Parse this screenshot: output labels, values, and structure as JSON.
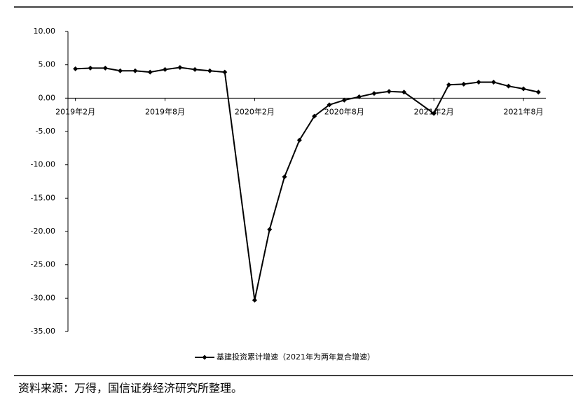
{
  "chart_data": {
    "type": "line",
    "x": [
      "2019-02",
      "2019-03",
      "2019-04",
      "2019-05",
      "2019-06",
      "2019-07",
      "2019-08",
      "2019-09",
      "2019-10",
      "2019-11",
      "2019-12",
      "2020-02",
      "2020-03",
      "2020-04",
      "2020-05",
      "2020-06",
      "2020-07",
      "2020-08",
      "2020-09",
      "2020-10",
      "2020-11",
      "2020-12",
      "2021-02",
      "2021-03",
      "2021-04",
      "2021-05",
      "2021-06",
      "2021-07",
      "2021-08",
      "2021-09"
    ],
    "series": [
      {
        "name": "基建投资累计增速（2021年为两年复合增速）",
        "color": "#000000",
        "values": [
          4.4,
          4.5,
          4.5,
          4.1,
          4.1,
          3.9,
          4.3,
          4.6,
          4.3,
          4.1,
          3.9,
          -30.3,
          -19.7,
          -11.8,
          -6.3,
          -2.7,
          -1.0,
          -0.3,
          0.2,
          0.7,
          1.0,
          0.9,
          -2.3,
          2.0,
          2.1,
          2.4,
          2.4,
          1.8,
          1.4,
          0.9
        ]
      }
    ],
    "xlim": [
      "2019-02",
      "2021-09"
    ],
    "xticks": [
      {
        "value": "2019-02",
        "label": "2019年2月"
      },
      {
        "value": "2019-08",
        "label": "2019年8月"
      },
      {
        "value": "2020-02",
        "label": "2020年2月"
      },
      {
        "value": "2020-08",
        "label": "2020年8月"
      },
      {
        "value": "2021-02",
        "label": "2021年2月"
      },
      {
        "value": "2021-08",
        "label": "2021年8月"
      }
    ],
    "ylim": [
      -35,
      10
    ],
    "yticks": [
      {
        "value": 10,
        "label": "10.00"
      },
      {
        "value": 5,
        "label": "5.00"
      },
      {
        "value": 0,
        "label": "0.00"
      },
      {
        "value": -5,
        "label": "-5.00"
      },
      {
        "value": -10,
        "label": "-10.00"
      },
      {
        "value": -15,
        "label": "-15.00"
      },
      {
        "value": -20,
        "label": "-20.00"
      },
      {
        "value": -25,
        "label": "-25.00"
      },
      {
        "value": -30,
        "label": "-30.00"
      },
      {
        "value": -35,
        "label": "-35.00"
      }
    ],
    "legend": "bottom",
    "source": "资料来源：万得，国信证券经济研究所整理。"
  }
}
